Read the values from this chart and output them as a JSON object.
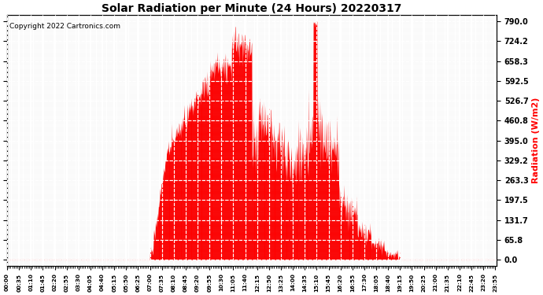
{
  "title": "Solar Radiation per Minute (24 Hours) 20220317",
  "ylabel": "Radiation (W/m2)",
  "copyright": "Copyright 2022 Cartronics.com",
  "background_color": "#ffffff",
  "fill_color": "#ff0000",
  "dashed_line_color": "#ff0000",
  "grid_color": "#aaaaaa",
  "yticks": [
    0.0,
    65.8,
    131.7,
    197.5,
    263.3,
    329.2,
    395.0,
    460.8,
    526.7,
    592.5,
    658.3,
    724.2,
    790.0
  ],
  "ymax": 790.0,
  "ymin": 0.0,
  "total_minutes": 1440,
  "xtick_label_interval": 35
}
